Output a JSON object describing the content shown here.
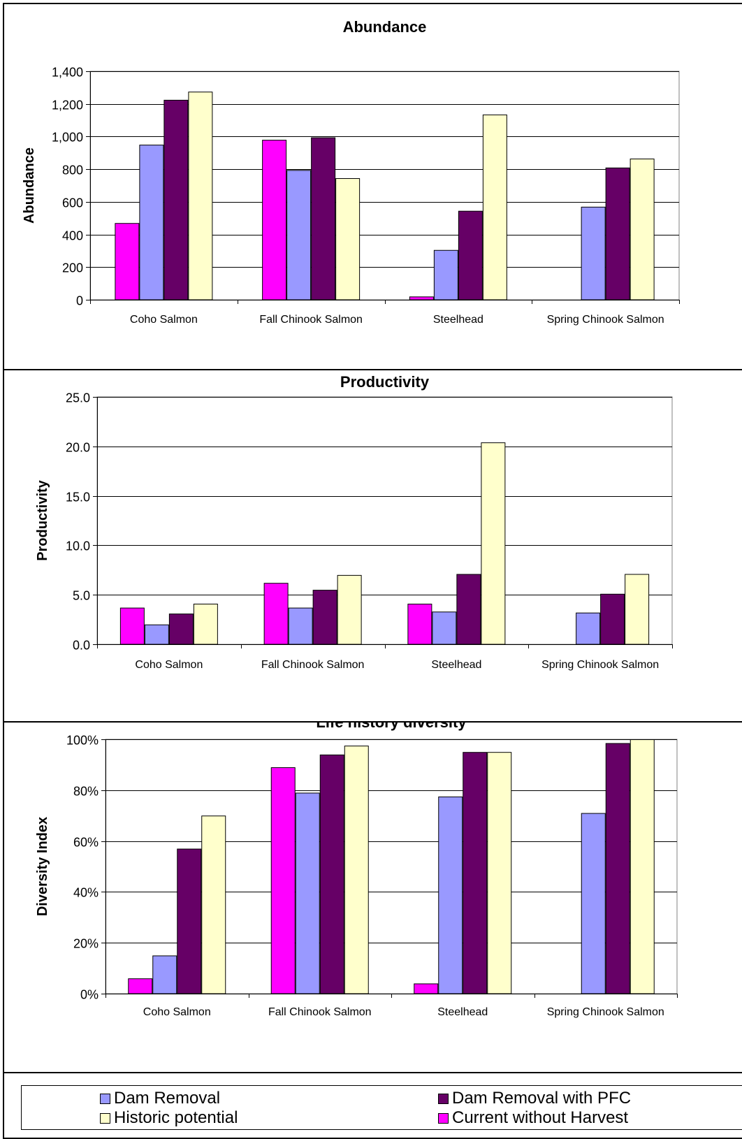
{
  "chart_data": [
    {
      "type": "bar",
      "title": "Abundance",
      "ylabel": "Abundance",
      "ylim": [
        0,
        1400
      ],
      "yticks": [
        "0",
        "200",
        "400",
        "600",
        "800",
        "1,000",
        "1,200",
        "1,400"
      ],
      "categories": [
        "Coho Salmon",
        "Fall Chinook Salmon",
        "Steelhead",
        "Spring Chinook Salmon"
      ],
      "series": [
        {
          "name": "Current without Harvest",
          "color": "#FF00FF",
          "values": [
            470,
            980,
            20,
            0
          ]
        },
        {
          "name": "Dam Removal",
          "color": "#9999FF",
          "values": [
            950,
            795,
            305,
            570
          ]
        },
        {
          "name": "Dam Removal with PFC",
          "color": "#660066",
          "values": [
            1225,
            995,
            545,
            810
          ]
        },
        {
          "name": "Historic potential",
          "color": "#FFFFCC",
          "values": [
            1275,
            745,
            1135,
            865
          ]
        }
      ],
      "grid": true
    },
    {
      "type": "bar",
      "title": "Productivity",
      "ylabel": "Productivity",
      "ylim": [
        0,
        25
      ],
      "yticks": [
        "0.0",
        "5.0",
        "10.0",
        "15.0",
        "20.0",
        "25.0"
      ],
      "categories": [
        "Coho Salmon",
        "Fall Chinook Salmon",
        "Steelhead",
        "Spring Chinook Salmon"
      ],
      "series": [
        {
          "name": "Current without Harvest",
          "color": "#FF00FF",
          "values": [
            3.7,
            6.2,
            4.1,
            0
          ]
        },
        {
          "name": "Dam Removal",
          "color": "#9999FF",
          "values": [
            2.0,
            3.7,
            3.3,
            3.2
          ]
        },
        {
          "name": "Dam Removal with PFC",
          "color": "#660066",
          "values": [
            3.1,
            5.5,
            7.1,
            5.1
          ]
        },
        {
          "name": "Historic potential",
          "color": "#FFFFCC",
          "values": [
            4.1,
            7.0,
            20.4,
            7.1
          ]
        }
      ],
      "grid": true
    },
    {
      "type": "bar",
      "title": "Life history diversity",
      "ylabel": "Diversity Index",
      "ylim": [
        0,
        1
      ],
      "yticks": [
        "0%",
        "20%",
        "40%",
        "60%",
        "80%",
        "100%"
      ],
      "categories": [
        "Coho Salmon",
        "Fall Chinook Salmon",
        "Steelhead",
        "Spring Chinook Salmon"
      ],
      "series": [
        {
          "name": "Current without Harvest",
          "color": "#FF00FF",
          "values": [
            0.06,
            0.89,
            0.04,
            0
          ]
        },
        {
          "name": "Dam Removal",
          "color": "#9999FF",
          "values": [
            0.15,
            0.79,
            0.775,
            0.71
          ]
        },
        {
          "name": "Dam Removal with PFC",
          "color": "#660066",
          "values": [
            0.57,
            0.94,
            0.95,
            0.985
          ]
        },
        {
          "name": "Historic potential",
          "color": "#FFFFCC",
          "values": [
            0.7,
            0.975,
            0.95,
            1.0
          ]
        }
      ],
      "grid": true
    }
  ],
  "legend": {
    "items": [
      {
        "label": "Dam Removal",
        "color": "#9999FF"
      },
      {
        "label": "Dam Removal with PFC",
        "color": "#660066"
      },
      {
        "label": "Historic potential",
        "color": "#FFFFCC"
      },
      {
        "label": "Current without Harvest",
        "color": "#FF00FF"
      }
    ]
  }
}
